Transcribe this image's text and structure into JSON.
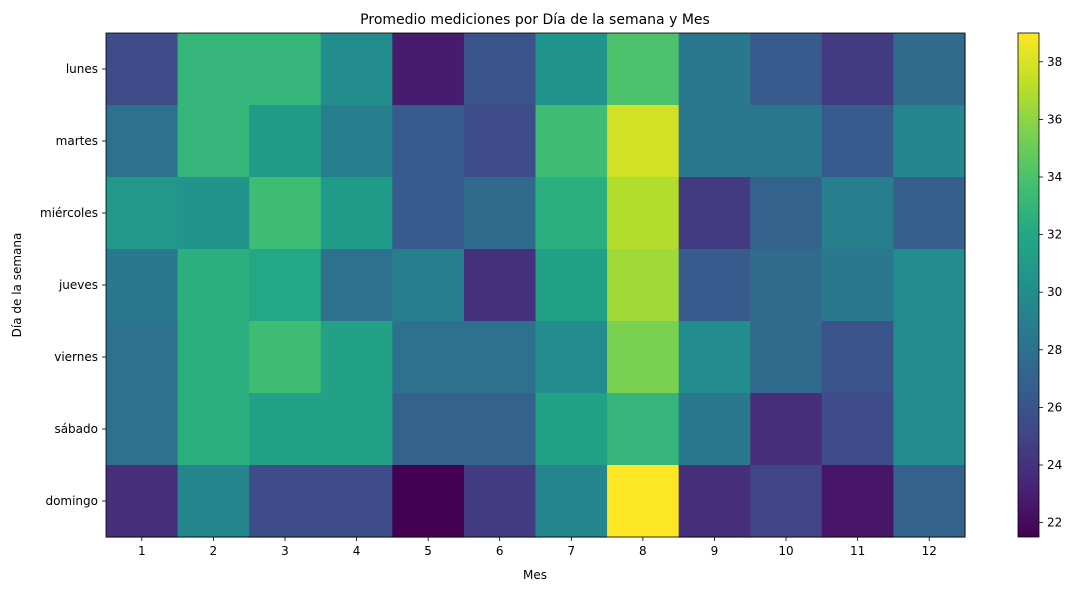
{
  "chart_data": {
    "type": "heatmap",
    "title": "Promedio mediciones por Día de la semana y Mes",
    "xlabel": "Mes",
    "ylabel": "Día de la semana",
    "x": [
      "1",
      "2",
      "3",
      "4",
      "5",
      "6",
      "7",
      "8",
      "9",
      "10",
      "11",
      "12"
    ],
    "y": [
      "lunes",
      "martes",
      "miércoles",
      "jueves",
      "viernes",
      "sábado",
      "domingo"
    ],
    "values": [
      [
        25.5,
        33.0,
        33.0,
        30.0,
        22.8,
        26.0,
        30.5,
        34.0,
        28.5,
        26.5,
        24.5,
        27.5
      ],
      [
        28.0,
        33.0,
        31.0,
        29.0,
        26.5,
        25.5,
        33.5,
        37.8,
        28.5,
        28.5,
        26.5,
        29.5
      ],
      [
        30.8,
        30.5,
        33.5,
        31.0,
        26.5,
        27.5,
        32.5,
        37.0,
        24.5,
        27.0,
        29.0,
        26.8
      ],
      [
        28.5,
        32.5,
        32.0,
        28.0,
        29.0,
        24.0,
        31.5,
        36.5,
        26.5,
        27.5,
        28.5,
        30.0
      ],
      [
        28.0,
        32.5,
        33.5,
        31.5,
        28.0,
        28.0,
        30.0,
        35.5,
        30.0,
        27.5,
        26.0,
        30.0
      ],
      [
        28.0,
        32.5,
        31.5,
        31.5,
        27.0,
        27.0,
        31.5,
        33.0,
        28.5,
        23.8,
        25.5,
        30.0
      ],
      [
        23.8,
        29.5,
        25.5,
        25.5,
        21.5,
        24.5,
        29.5,
        39.0,
        23.8,
        25.0,
        22.5,
        27.0
      ]
    ],
    "colorbar": {
      "range": [
        21.5,
        39.0
      ],
      "ticks": [
        "22",
        "24",
        "26",
        "28",
        "30",
        "32",
        "34",
        "36",
        "38"
      ],
      "colormap": "viridis"
    },
    "grid": false
  }
}
